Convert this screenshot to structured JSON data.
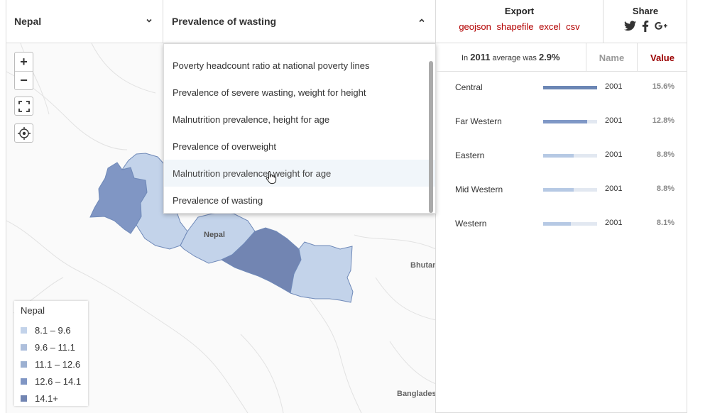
{
  "selectors": {
    "country": "Nepal",
    "indicator": "Prevalence of wasting"
  },
  "export": {
    "title": "Export",
    "links": [
      "geojson",
      "shapefile",
      "excel",
      "csv"
    ]
  },
  "share": {
    "title": "Share",
    "icons": [
      "twitter-icon",
      "facebook-icon",
      "google-plus-icon"
    ]
  },
  "dropdown": {
    "options": [
      "Poverty headcount ratio at national poverty lines",
      "Prevalence of severe wasting, weight for height",
      "Malnutrition prevalence, height for age",
      "Prevalence of overweight",
      "Malnutrition prevalence, weight for age",
      "Prevalence of wasting"
    ],
    "hovered": "Malnutrition prevalence, weight for age"
  },
  "map": {
    "places": [
      "Nepal",
      "Bhutan",
      "Banglades"
    ],
    "regions": [
      {
        "name": "Far Western",
        "value": 12.8,
        "color": "#8096c4"
      },
      {
        "name": "Mid Western",
        "value": 8.8,
        "color": "#c3d3ea"
      },
      {
        "name": "Western",
        "value": 8.1,
        "color": "#c3d3ea"
      },
      {
        "name": "Central",
        "value": 15.6,
        "color": "#7285b2"
      },
      {
        "name": "Eastern",
        "value": 8.8,
        "color": "#c3d3ea"
      }
    ]
  },
  "legend": {
    "title": "Nepal",
    "items": [
      {
        "label": "8.1 – 9.6",
        "color": "#c3d3ea"
      },
      {
        "label": "9.6 – 11.1",
        "color": "#aebfdc"
      },
      {
        "label": "11.1 – 12.6",
        "color": "#9cb0d1"
      },
      {
        "label": "12.6 – 14.1",
        "color": "#8096c4"
      },
      {
        "label": "14.1+",
        "color": "#7285b2"
      }
    ]
  },
  "summary": {
    "prefix": "In",
    "year": "2011",
    "middle": "average was",
    "value": "2.9%"
  },
  "table": {
    "header_name": "Name",
    "header_value": "Value",
    "max_value": 15.6,
    "rows": [
      {
        "name": "Central",
        "year": "2001",
        "value": 15.6,
        "value_label": "15.6%",
        "color": "#6b86b4"
      },
      {
        "name": "Far Western",
        "year": "2001",
        "value": 12.8,
        "value_label": "12.8%",
        "color": "#7f98c6"
      },
      {
        "name": "Eastern",
        "year": "2001",
        "value": 8.8,
        "value_label": "8.8%",
        "color": "#b6c9e4"
      },
      {
        "name": "Mid Western",
        "year": "2001",
        "value": 8.8,
        "value_label": "8.8%",
        "color": "#b6c9e4"
      },
      {
        "name": "Western",
        "year": "2001",
        "value": 8.1,
        "value_label": "8.1%",
        "color": "#b6c9e4"
      }
    ]
  }
}
